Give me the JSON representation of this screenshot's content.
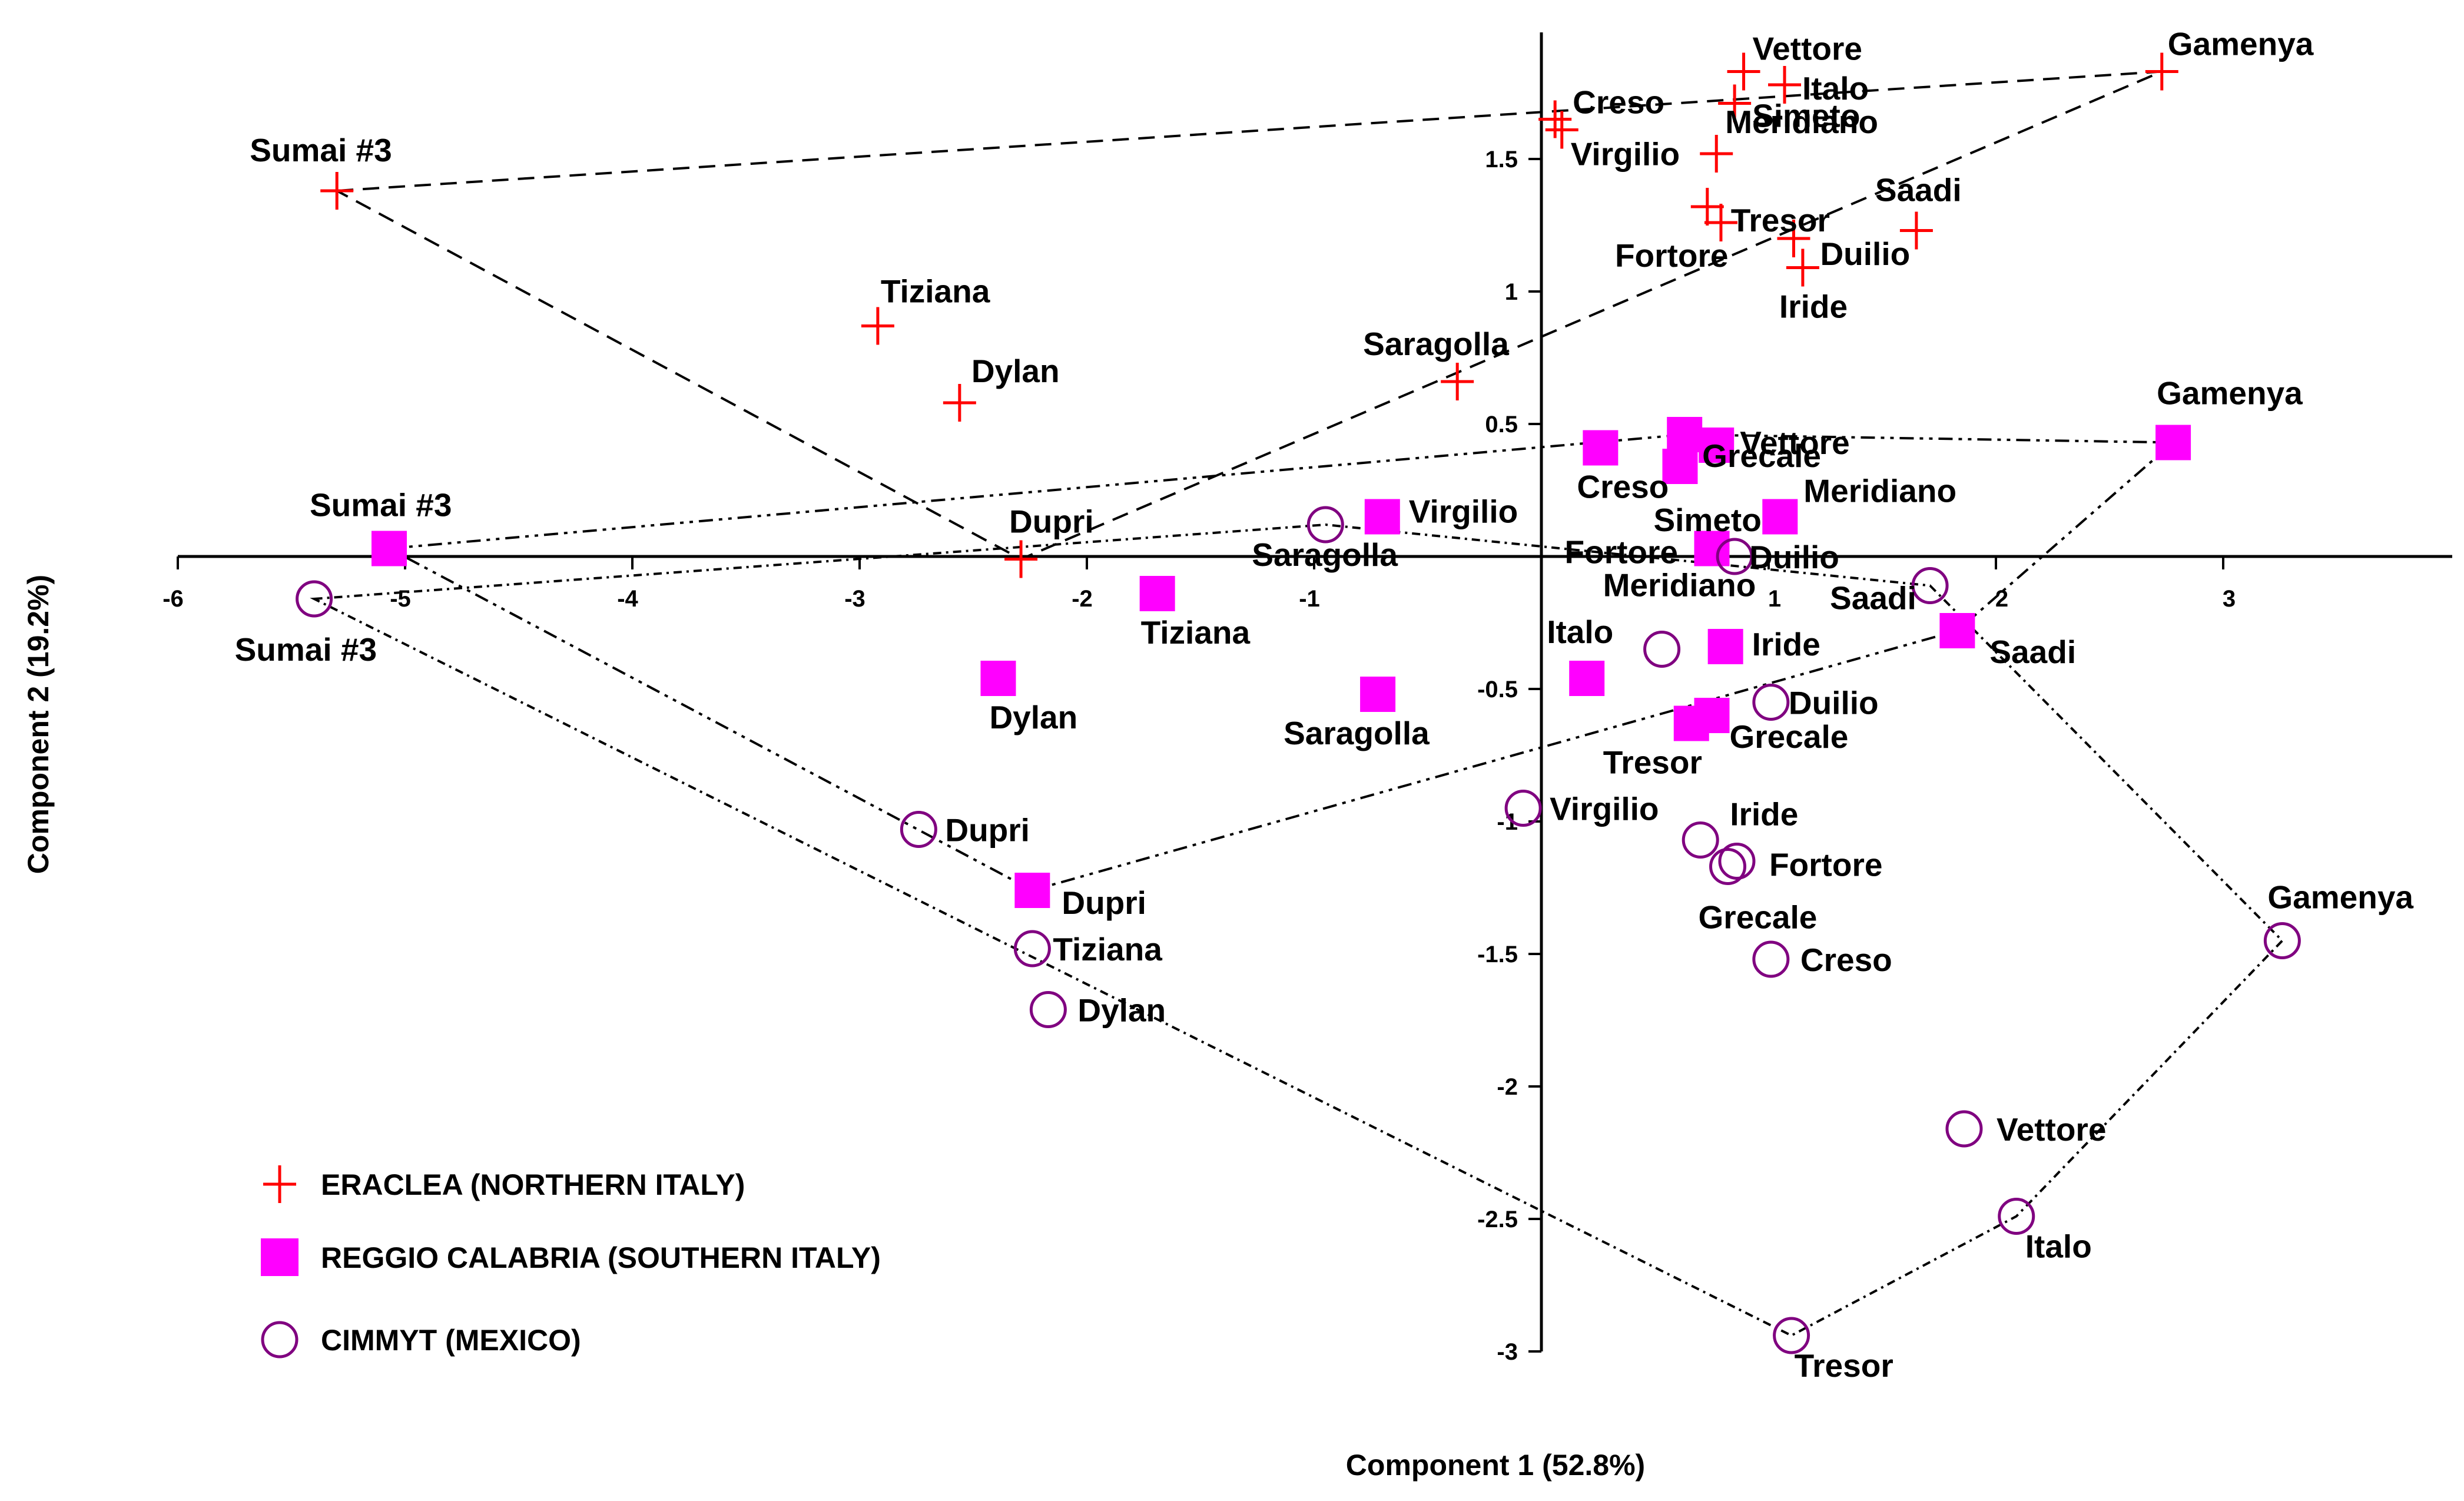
{
  "chart_data": {
    "type": "scatter",
    "xlabel": "Component 1 (52.8%)",
    "ylabel": "Component 2 (19.2%)",
    "xlim": [
      -6,
      4
    ],
    "ylim": [
      -3,
      2
    ],
    "x_ticks": [
      {
        "value": -6,
        "label": "-6"
      },
      {
        "value": -5,
        "label": "-5"
      },
      {
        "value": -4,
        "label": "-4"
      },
      {
        "value": -3,
        "label": "-3"
      },
      {
        "value": -2,
        "label": "-2"
      },
      {
        "value": -1,
        "label": "-1"
      },
      {
        "value": 1,
        "label": "1"
      },
      {
        "value": 2,
        "label": "2"
      },
      {
        "value": 3,
        "label": "3"
      }
    ],
    "y_ticks": [
      {
        "value": 1.5,
        "label": "1.5"
      },
      {
        "value": 1,
        "label": "1"
      },
      {
        "value": 0.5,
        "label": "0.5"
      },
      {
        "value": -0.5,
        "label": "-0.5"
      },
      {
        "value": -1,
        "label": "-1"
      },
      {
        "value": -1.5,
        "label": "-1.5"
      },
      {
        "value": -2,
        "label": "-2"
      },
      {
        "value": -2.5,
        "label": "-2.5"
      },
      {
        "value": -3,
        "label": "-3"
      }
    ],
    "legend": {
      "position": "bottom-left"
    },
    "series": [
      {
        "name": "ERACLEA (NORTHERN ITALY)",
        "marker": "plus",
        "color": "#ff0000",
        "hull": [
          "Sumai #3",
          "Gamenya",
          "Dupri"
        ],
        "points": [
          {
            "label": "Sumai #3",
            "x": -5.3,
            "y": 1.38
          },
          {
            "label": "Gamenya",
            "x": 2.73,
            "y": 1.83
          },
          {
            "label": "Vettore",
            "x": 0.89,
            "y": 1.83
          },
          {
            "label": "Italo",
            "x": 1.07,
            "y": 1.78
          },
          {
            "label": "Creso",
            "x": 0.06,
            "y": 1.65
          },
          {
            "label": "Virgilio",
            "x": 0.09,
            "y": 1.61
          },
          {
            "label": "Simeto",
            "x": 0.85,
            "y": 1.71
          },
          {
            "label": "Meridiano",
            "x": 0.77,
            "y": 1.52
          },
          {
            "label": "Tresor",
            "x": 0.73,
            "y": 1.32
          },
          {
            "label": "Fortore",
            "x": 0.79,
            "y": 1.26
          },
          {
            "label": "Saadi",
            "x": 1.65,
            "y": 1.23
          },
          {
            "label": "Duilio",
            "x": 1.11,
            "y": 1.2
          },
          {
            "label": "Iride",
            "x": 1.15,
            "y": 1.09
          },
          {
            "label": "Tiziana",
            "x": -2.92,
            "y": 0.87
          },
          {
            "label": "Dylan",
            "x": -2.56,
            "y": 0.58
          },
          {
            "label": "Saragolla",
            "x": -0.37,
            "y": 0.66
          },
          {
            "label": "Dupri",
            "x": -2.29,
            "y": -0.01
          }
        ]
      },
      {
        "name": "REGGIO CALABRIA (SOUTHERN ITALY)",
        "marker": "square",
        "color": "#ff00ff",
        "hull": [
          "Sumai #3",
          "Grecale",
          "Gamenya",
          "Saadi",
          "Dupri"
        ],
        "points": [
          {
            "label": "Sumai #3",
            "x": -5.07,
            "y": 0.03
          },
          {
            "label": "Gamenya",
            "x": 2.78,
            "y": 0.43
          },
          {
            "label": "Grecale",
            "x": 0.63,
            "y": 0.46
          },
          {
            "label": "Vettore",
            "x": 0.77,
            "y": 0.42
          },
          {
            "label": "Creso",
            "x": 0.26,
            "y": 0.41
          },
          {
            "label": "Simeto",
            "x": 0.61,
            "y": 0.34
          },
          {
            "label": "Virgilio",
            "x": -0.7,
            "y": 0.15
          },
          {
            "label": "Meridiano",
            "x": 1.05,
            "y": 0.15
          },
          {
            "label": "Fortore",
            "x": 0.75,
            "y": 0.03
          },
          {
            "label": "Tiziana",
            "x": -1.69,
            "y": -0.14
          },
          {
            "label": "Saadi",
            "x": 1.83,
            "y": -0.28
          },
          {
            "label": "Iride",
            "x": 0.81,
            "y": -0.34
          },
          {
            "label": "Italo",
            "x": 0.2,
            "y": -0.46
          },
          {
            "label": "Dylan",
            "x": -2.39,
            "y": -0.46
          },
          {
            "label": "Saragolla",
            "x": -0.72,
            "y": -0.52
          },
          {
            "label": "Grecale",
            "x": 0.75,
            "y": -0.6
          },
          {
            "label": "Tresor",
            "x": 0.66,
            "y": -0.63
          },
          {
            "label": "Dupri",
            "x": -2.24,
            "y": -1.26
          }
        ]
      },
      {
        "name": "CIMMYT (MEXICO)",
        "marker": "circle",
        "color": "#800080",
        "hull": [
          "Sumai #3",
          "Saragolla",
          "Saadi",
          "Gamenya",
          "Italo",
          "Tresor"
        ],
        "points": [
          {
            "label": "Sumai #3",
            "x": -5.4,
            "y": -0.16
          },
          {
            "label": "Saragolla",
            "x": -0.95,
            "y": 0.12
          },
          {
            "label": "Duilio",
            "x": 0.85,
            "y": 0.0
          },
          {
            "label": "Saadi",
            "x": 1.71,
            "y": -0.11
          },
          {
            "label": "Meridiano",
            "x": 0.53,
            "y": -0.35
          },
          {
            "label": "Duilio",
            "x": 1.01,
            "y": -0.55
          },
          {
            "label": "Virgilio",
            "x": -0.08,
            "y": -0.95
          },
          {
            "label": "Iride",
            "x": 0.7,
            "y": -1.07
          },
          {
            "label": "Fortore",
            "x": 0.86,
            "y": -1.15
          },
          {
            "label": "Grecale",
            "x": 0.82,
            "y": -1.17
          },
          {
            "label": "Creso",
            "x": 1.01,
            "y": -1.52
          },
          {
            "label": "Dupri",
            "x": -2.74,
            "y": -1.03
          },
          {
            "label": "Tiziana",
            "x": -2.24,
            "y": -1.48
          },
          {
            "label": "Dylan",
            "x": -2.17,
            "y": -1.71
          },
          {
            "label": "Gamenya",
            "x": 3.26,
            "y": -1.45
          },
          {
            "label": "Vettore",
            "x": 1.86,
            "y": -2.16
          },
          {
            "label": "Italo",
            "x": 2.09,
            "y": -2.49
          },
          {
            "label": "Tresor",
            "x": 1.1,
            "y": -2.94
          }
        ]
      }
    ]
  }
}
